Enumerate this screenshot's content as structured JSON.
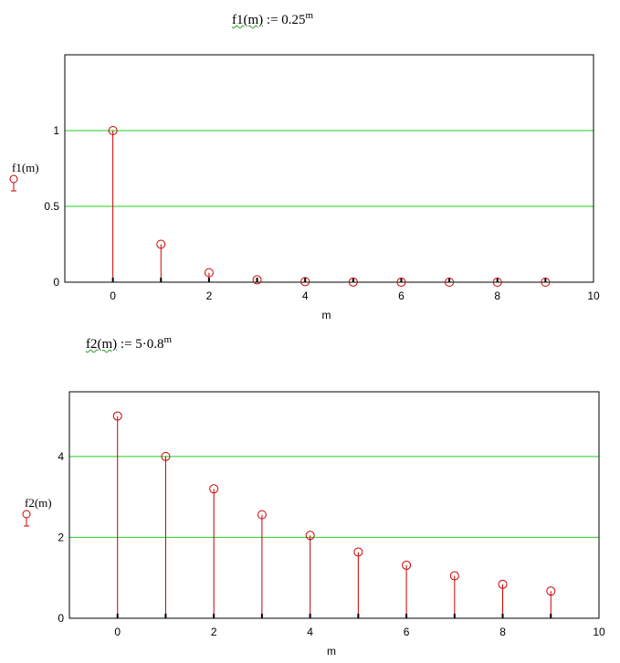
{
  "formulas": [
    {
      "name": "f1(m)",
      "assign": ":=",
      "base": "0.25",
      "exponent": "m"
    },
    {
      "name": "f2(m)",
      "assign": ":=",
      "base": "5·0.8",
      "exponent": "m"
    }
  ],
  "colors": {
    "stem": "#cc0000",
    "gridline": "#22cc22",
    "frame": "#000000"
  },
  "chart_data": [
    {
      "type": "stem",
      "xlabel": "m",
      "ylabel": "f1(m)",
      "xlim": [
        -1,
        10
      ],
      "ylim": [
        0,
        1.5
      ],
      "xticks": [
        0,
        2,
        4,
        6,
        8,
        10
      ],
      "xtick_labels": [
        "0",
        "2",
        "4",
        "6",
        "8",
        "10"
      ],
      "yticks": [
        0,
        0.5,
        1
      ],
      "ytick_labels": [
        "0",
        "0.5",
        "1"
      ],
      "grid": "horizontal",
      "x": [
        0,
        1,
        2,
        3,
        4,
        5,
        6,
        7,
        8,
        9
      ],
      "y": [
        1,
        0.25,
        0.0625,
        0.015625,
        0.0039,
        0.00098,
        0.00024,
        6e-05,
        1.5e-05,
        3.8e-06
      ]
    },
    {
      "type": "stem",
      "xlabel": "m",
      "ylabel": "f2(m)",
      "xlim": [
        -1,
        10
      ],
      "ylim": [
        0,
        5.6
      ],
      "xticks": [
        0,
        2,
        4,
        6,
        8,
        10
      ],
      "xtick_labels": [
        "0",
        "2",
        "4",
        "6",
        "8",
        "10"
      ],
      "yticks": [
        0,
        2,
        4
      ],
      "ytick_labels": [
        "0",
        "2",
        "4"
      ],
      "grid": "horizontal",
      "x": [
        0,
        1,
        2,
        3,
        4,
        5,
        6,
        7,
        8,
        9
      ],
      "y": [
        5,
        4,
        3.2,
        2.56,
        2.048,
        1.638,
        1.311,
        1.049,
        0.839,
        0.671
      ]
    }
  ]
}
